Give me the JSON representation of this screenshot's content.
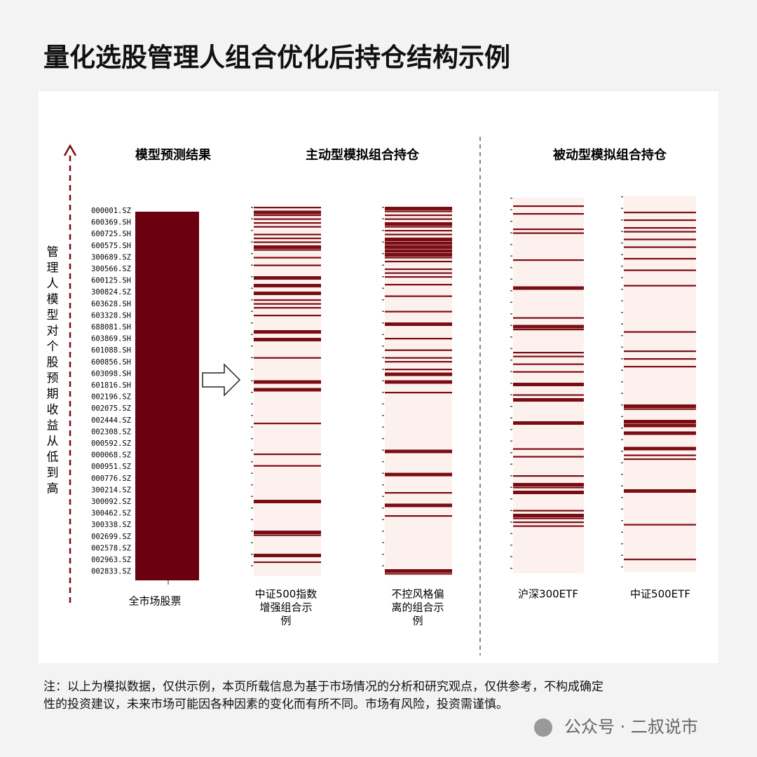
{
  "header": {
    "title": "量化选股管理人组合优化后持仓结构示例"
  },
  "panel": {
    "y_axis_label": "管理人模型对个股预期收益从低到高",
    "sections": [
      {
        "title": "模型预测结果"
      },
      {
        "title": "主动型模拟组合持仓"
      },
      {
        "title": "被动型模拟组合持仓"
      }
    ],
    "stocks": [
      "000001.SZ",
      "600369.SH",
      "600725.SH",
      "600575.SH",
      "300689.SZ",
      "300566.SZ",
      "600125.SH",
      "300824.SZ",
      "603628.SH",
      "603328.SH",
      "688081.SH",
      "603869.SH",
      "601088.SH",
      "600856.SH",
      "603098.SH",
      "601816.SH",
      "002196.SZ",
      "002075.SZ",
      "002444.SZ",
      "002308.SZ",
      "000592.SZ",
      "000068.SZ",
      "000951.SZ",
      "000776.SZ",
      "300214.SZ",
      "300092.SZ",
      "300462.SZ",
      "300338.SZ",
      "002699.SZ",
      "002578.SZ",
      "002963.SZ",
      "002833.SZ"
    ],
    "columns": [
      {
        "label": "全市场股票"
      },
      {
        "label": [
          "中证500指数",
          "增强组合示",
          "例"
        ]
      },
      {
        "label": [
          "不控风格偏",
          "离的组合示",
          "例"
        ]
      },
      {
        "label": "沪深300ETF"
      },
      {
        "label": "中证500ETF"
      }
    ]
  },
  "footer": {
    "note": [
      "注：以上为模拟数据，仅供示例，本页所载信息为基于市场情况的分析和研究观点，仅供参考，不构成确定",
      "性的投资建议，未来市场可能因各种因素的变化而有所不同。市场有风险，投资需谨慎。"
    ],
    "watermark": "公众号 · 二叔说市"
  }
}
